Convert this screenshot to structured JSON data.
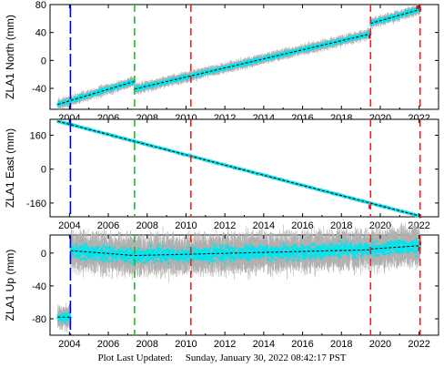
{
  "station": "ZLA1",
  "footer": {
    "prefix": "Plot Last Updated:",
    "timestamp": "Sunday, January 30, 2022 08:42:17 PST"
  },
  "colors": {
    "data": "#00e5ee",
    "errorbar": "#b0b0b0",
    "model": "#000000",
    "outlier": "#e00000",
    "blue_line": "#0000cc",
    "green_line": "#22bb22",
    "red_line": "#ee2222"
  },
  "chart_data": [
    {
      "type": "scatter",
      "ylabel": "ZLA1 North (mm)",
      "xlim": [
        2003.0,
        2023.0
      ],
      "ylim": [
        -70,
        80
      ],
      "x_ticks": [
        2004,
        2006,
        2008,
        2010,
        2012,
        2014,
        2016,
        2018,
        2020,
        2022
      ],
      "y_ticks": [
        -40,
        0,
        40,
        80
      ],
      "vlines": [
        {
          "x": 2004.05,
          "style": "blue"
        },
        {
          "x": 2007.35,
          "style": "green"
        },
        {
          "x": 2010.25,
          "style": "red"
        },
        {
          "x": 2019.5,
          "style": "red"
        },
        {
          "x": 2022.05,
          "style": "red"
        }
      ],
      "segments": [
        {
          "start": [
            2003.4,
            -63
          ],
          "end": [
            2007.35,
            -30
          ],
          "noise": 2.5
        },
        {
          "start": [
            2007.35,
            -41
          ],
          "end": [
            2019.5,
            38
          ],
          "noise": 2.5
        },
        {
          "start": [
            2019.5,
            53
          ],
          "end": [
            2022.05,
            73
          ],
          "noise": 2.5
        }
      ],
      "outliers": [
        [
          2019.45,
          34
        ],
        [
          2021.9,
          76
        ],
        [
          2022.05,
          73
        ]
      ]
    },
    {
      "type": "scatter",
      "ylabel": "ZLA1 East (mm)",
      "xlim": [
        2003.0,
        2023.0
      ],
      "ylim": [
        -225,
        235
      ],
      "x_ticks": [
        2004,
        2006,
        2008,
        2010,
        2012,
        2014,
        2016,
        2018,
        2020,
        2022
      ],
      "y_ticks": [
        -160,
        0,
        160
      ],
      "vlines": [
        {
          "x": 2004.05,
          "style": "blue"
        },
        {
          "x": 2007.35,
          "style": "green"
        },
        {
          "x": 2010.25,
          "style": "red"
        },
        {
          "x": 2019.5,
          "style": "red"
        },
        {
          "x": 2022.05,
          "style": "red"
        }
      ],
      "segments": [
        {
          "start": [
            2003.4,
            226
          ],
          "end": [
            2022.05,
            -222
          ],
          "noise": 3
        }
      ],
      "outliers": [
        [
          2019.45,
          -178
        ],
        [
          2022.05,
          -222
        ]
      ]
    },
    {
      "type": "scatter",
      "ylabel": "ZLA1 Up (mm)",
      "xlim": [
        2003.0,
        2023.0
      ],
      "ylim": [
        -100,
        22
      ],
      "x_ticks": [
        2004,
        2006,
        2008,
        2010,
        2012,
        2014,
        2016,
        2018,
        2020,
        2022
      ],
      "y_ticks": [
        -80,
        -40,
        0
      ],
      "vlines": [
        {
          "x": 2004.05,
          "style": "blue"
        },
        {
          "x": 2007.35,
          "style": "green"
        },
        {
          "x": 2010.25,
          "style": "red"
        },
        {
          "x": 2019.5,
          "style": "red"
        },
        {
          "x": 2022.05,
          "style": "red"
        }
      ],
      "segments": [
        {
          "start": [
            2003.4,
            -78
          ],
          "end": [
            2004.05,
            -78
          ],
          "noise": 5
        },
        {
          "start": [
            2004.05,
            3
          ],
          "end": [
            2007.35,
            -3
          ],
          "noise": 8
        },
        {
          "start": [
            2007.35,
            -3
          ],
          "end": [
            2019.5,
            4
          ],
          "noise": 8
        },
        {
          "start": [
            2019.5,
            5
          ],
          "end": [
            2022.05,
            9
          ],
          "noise": 8
        }
      ],
      "outliers": [
        [
          2022.0,
          5
        ],
        [
          2022.05,
          12
        ]
      ]
    }
  ]
}
